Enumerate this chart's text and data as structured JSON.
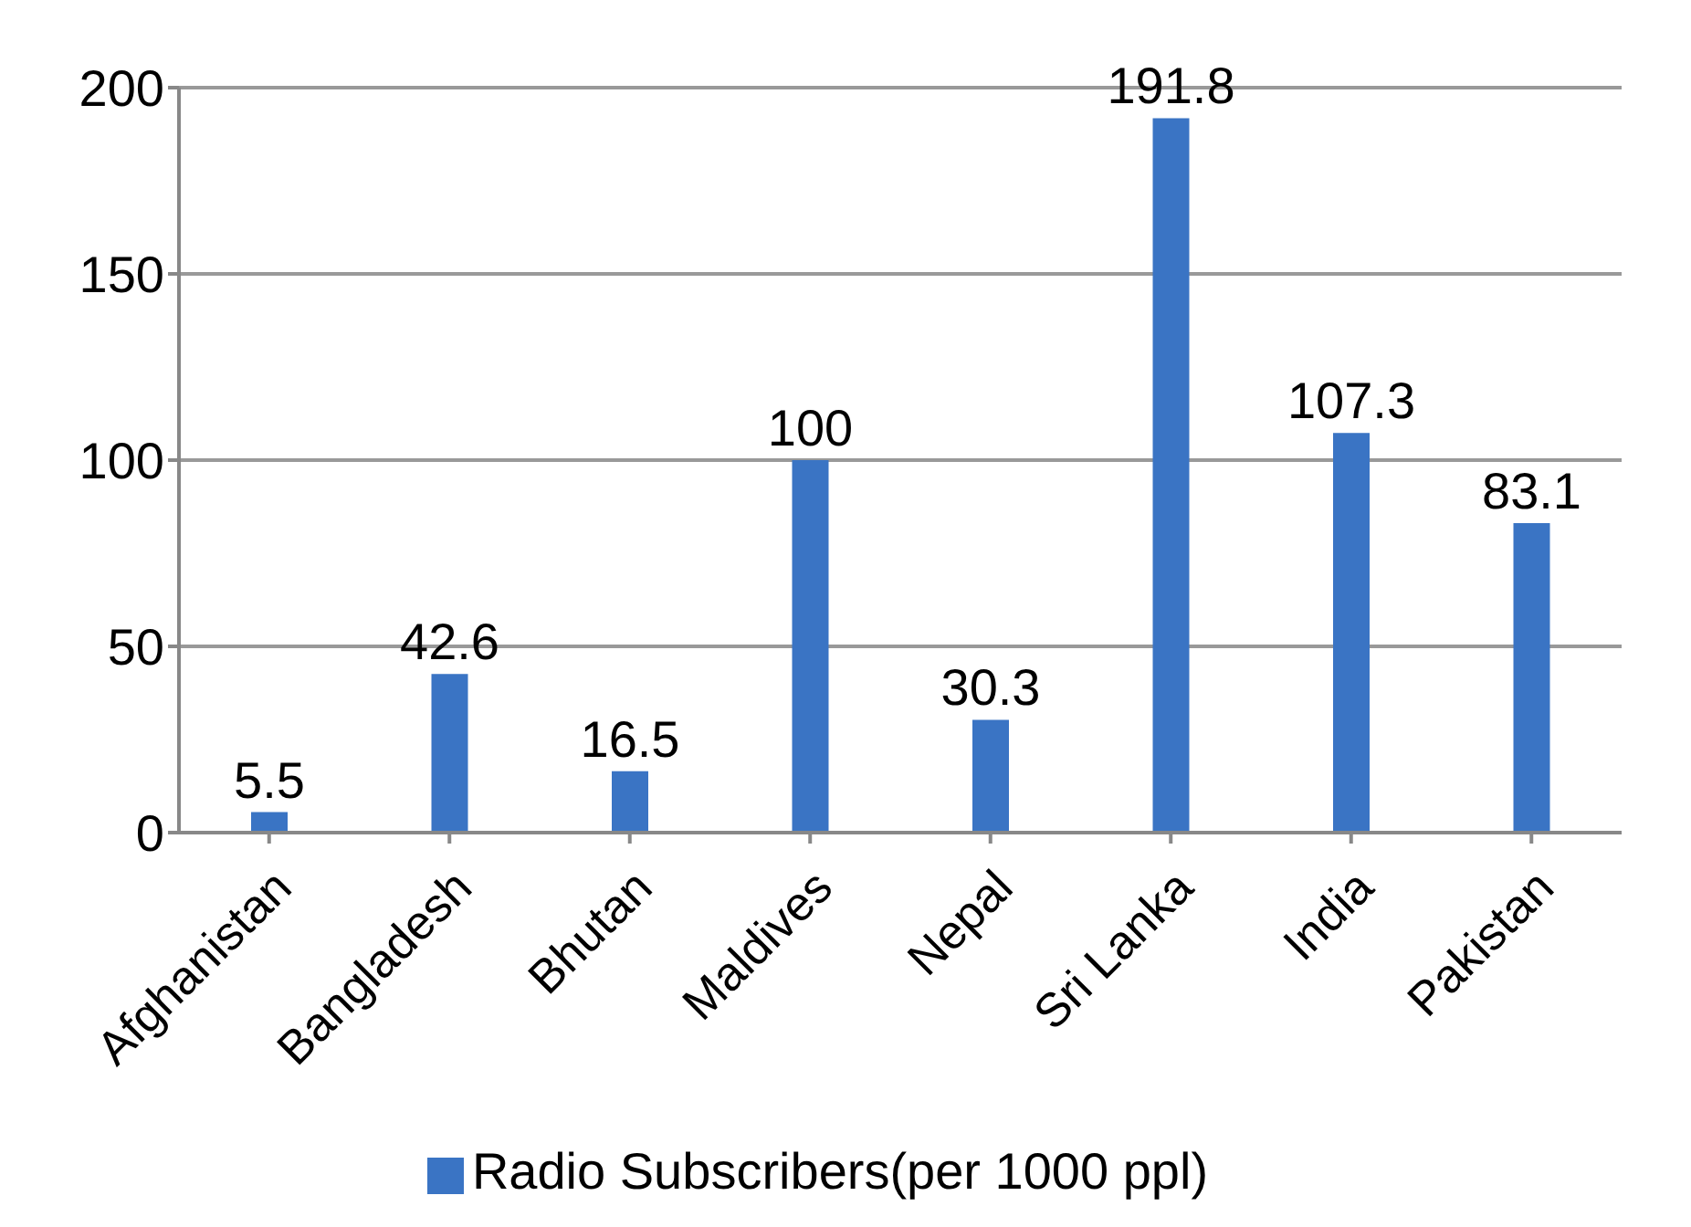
{
  "chart_data": {
    "type": "bar",
    "categories": [
      "Afghanistan",
      "Bangladesh",
      "Bhutan",
      "Maldives",
      "Nepal",
      "Sri Lanka",
      "India",
      "Pakistan"
    ],
    "series": [
      {
        "name": "Radio Subscribers(per 1000 ppl)",
        "color": "#3a74c4",
        "values": [
          5.5,
          42.6,
          16.5,
          100,
          30.3,
          191.8,
          107.3,
          83.1
        ]
      }
    ],
    "ylim": [
      0,
      200
    ],
    "yticks": [
      0,
      50,
      100,
      150,
      200
    ],
    "grid": "y",
    "legend": "bottom",
    "data_labels": true
  }
}
